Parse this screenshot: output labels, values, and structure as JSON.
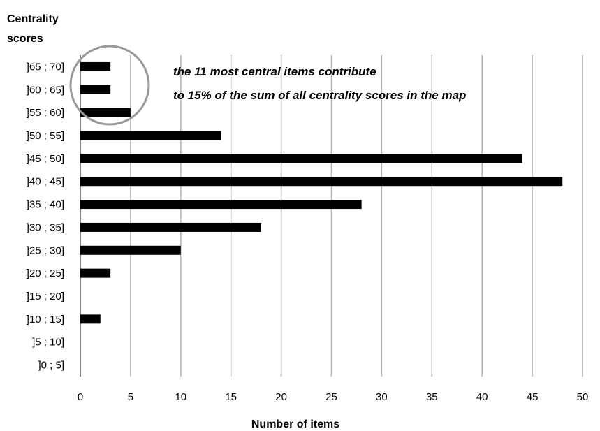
{
  "chart_data": {
    "type": "bar",
    "orientation": "horizontal",
    "ylabel": [
      "Centrality",
      "scores"
    ],
    "xlabel": "Number of items",
    "categories": [
      "]0 ; 5]",
      "]5 ; 10]",
      "]10 ; 15]",
      "]15 ; 20]",
      "]20 ; 25]",
      "]25 ; 30]",
      "]30 ; 35]",
      "]35 ; 40]",
      "]40 ; 45]",
      "]45 ; 50]",
      "]50 ; 55]",
      "]55 ; 60]",
      "]60 ; 65]",
      "]65 ; 70]"
    ],
    "values": [
      0,
      0,
      2,
      0,
      3,
      10,
      18,
      28,
      48,
      44,
      14,
      5,
      3,
      3
    ],
    "xlim": [
      0,
      50
    ],
    "xticks": [
      0,
      5,
      10,
      15,
      20,
      25,
      30,
      35,
      40,
      45,
      50
    ],
    "grid": "vertical",
    "bar_color": "#000000",
    "grid_color": "#b3b3b3",
    "annotation": {
      "lines": [
        "the 11 most central items contribute",
        "to 15% of the sum of all centrality scores in the map"
      ],
      "highlight_categories": [
        "]55 ; 60]",
        "]60 ; 65]",
        "]65 ; 70]"
      ],
      "highlight_shape": "circle",
      "highlight_color": "#999999"
    }
  }
}
